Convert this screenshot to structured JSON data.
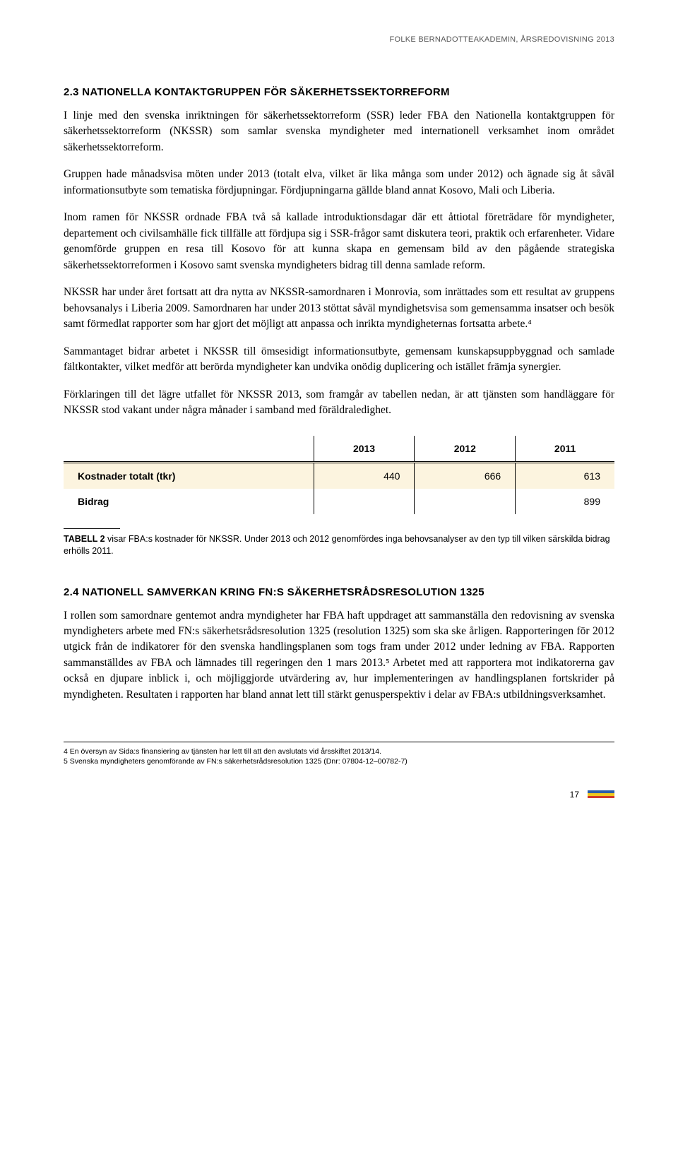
{
  "header": {
    "text": "FOLKE BERNADOTTEAKADEMIN, ÅRSREDOVISNING 2013"
  },
  "section1": {
    "heading": "2.3 NATIONELLA KONTAKTGRUPPEN FÖR SÄKERHETSSEKTORREFORM",
    "p1": "I linje med den svenska inriktningen för säkerhetssektorreform (SSR) leder FBA den Nationella kontaktgruppen för säkerhetssektorreform (NKSSR) som samlar svenska myndigheter med internationell verksamhet inom området säkerhetssektorreform.",
    "p2": "Gruppen hade månadsvisa möten under 2013 (totalt elva, vilket är lika många som under 2012) och ägnade sig åt såväl informationsutbyte som tematiska fördjupningar. Fördjupningarna gällde bland annat Kosovo, Mali och Liberia.",
    "p3": "Inom ramen för NKSSR ordnade FBA två så kallade introduktionsdagar där ett åttiotal företrädare för myndigheter, departement och civilsamhälle fick tillfälle att fördjupa sig i SSR-frågor samt diskutera teori, praktik och erfarenheter. Vidare genomförde gruppen en resa till Kosovo för att kunna skapa en gemensam bild av den pågående strategiska säkerhetssektorreformen i Kosovo samt svenska myndigheters bidrag till denna samlade reform.",
    "p4": "NKSSR har under året fortsatt att dra nytta av NKSSR-samordnaren i Monrovia, som inrättades som ett resultat av gruppens behovsanalys i Liberia 2009. Samordnaren har under 2013 stöttat såväl myndighetsvisa som gemensamma insatser och besök samt förmedlat rapporter som har gjort det möjligt att anpassa och inrikta myndigheternas fortsatta arbete.⁴",
    "p5": "Sammantaget bidrar arbetet i NKSSR till ömsesidigt informationsutbyte, gemensam kunskapsuppbyggnad och samlade fältkontakter, vilket medför att berörda myndigheter kan undvika onödig duplicering och istället främja synergier.",
    "p6": "Förklaringen till det lägre utfallet för NKSSR 2013, som framgår av tabellen nedan, är att tjänsten som handläggare för NKSSR stod vakant under några månader i samband med föräldraledighet."
  },
  "table": {
    "columns": [
      "",
      "2013",
      "2012",
      "2011"
    ],
    "rows": [
      {
        "label": "Kostnader totalt (tkr)",
        "c2013": "440",
        "c2012": "666",
        "c2011": "613",
        "highlight": true
      },
      {
        "label": "Bidrag",
        "c2013": "",
        "c2012": "",
        "c2011": "899",
        "highlight": false
      }
    ],
    "caption_label": "TABELL 2",
    "caption_text": " visar FBA:s kostnader för NKSSR. Under 2013 och 2012 genomfördes inga behovsanalyser av den typ till vilken särskilda bidrag erhölls 2011.",
    "highlight_color": "#fcf4df"
  },
  "section2": {
    "heading": "2.4 NATIONELL SAMVERKAN KRING FN:S SÄKERHETSRÅDSRESOLUTION 1325",
    "p1": "I rollen som samordnare gentemot andra myndigheter har FBA haft uppdraget att sammanställa den redovisning av svenska myndigheters arbete med FN:s säkerhetsrådsresolution 1325 (resolution 1325) som ska ske årligen. Rapporteringen för 2012 utgick från de indikatorer för den svenska handlingsplanen som togs fram under 2012 under ledning av FBA. Rapporten sammanställdes av FBA och lämnades till regeringen den 1 mars 2013.⁵ Arbetet med att rapportera mot indikatorerna gav också en djupare inblick i, och möjliggjorde utvärdering av, hur implementeringen av handlingsplanen fortskrider på myndigheten. Resultaten i rapporten har bland annat lett till stärkt genusperspektiv i delar av FBA:s utbildningsverksamhet."
  },
  "footnotes": {
    "f4": "4   En översyn av Sida:s finansiering av tjänsten har lett till att den avslutats vid årsskiftet 2013/14.",
    "f5": "5   Svenska myndigheters genomförande av FN:s säkerhetsrådsresolution 1325 (Dnr: 07804-12–00782-7)"
  },
  "footer": {
    "page_number": "17",
    "flag_colors": [
      "#2a5caa",
      "#f0c71f",
      "#d23a2a"
    ]
  }
}
